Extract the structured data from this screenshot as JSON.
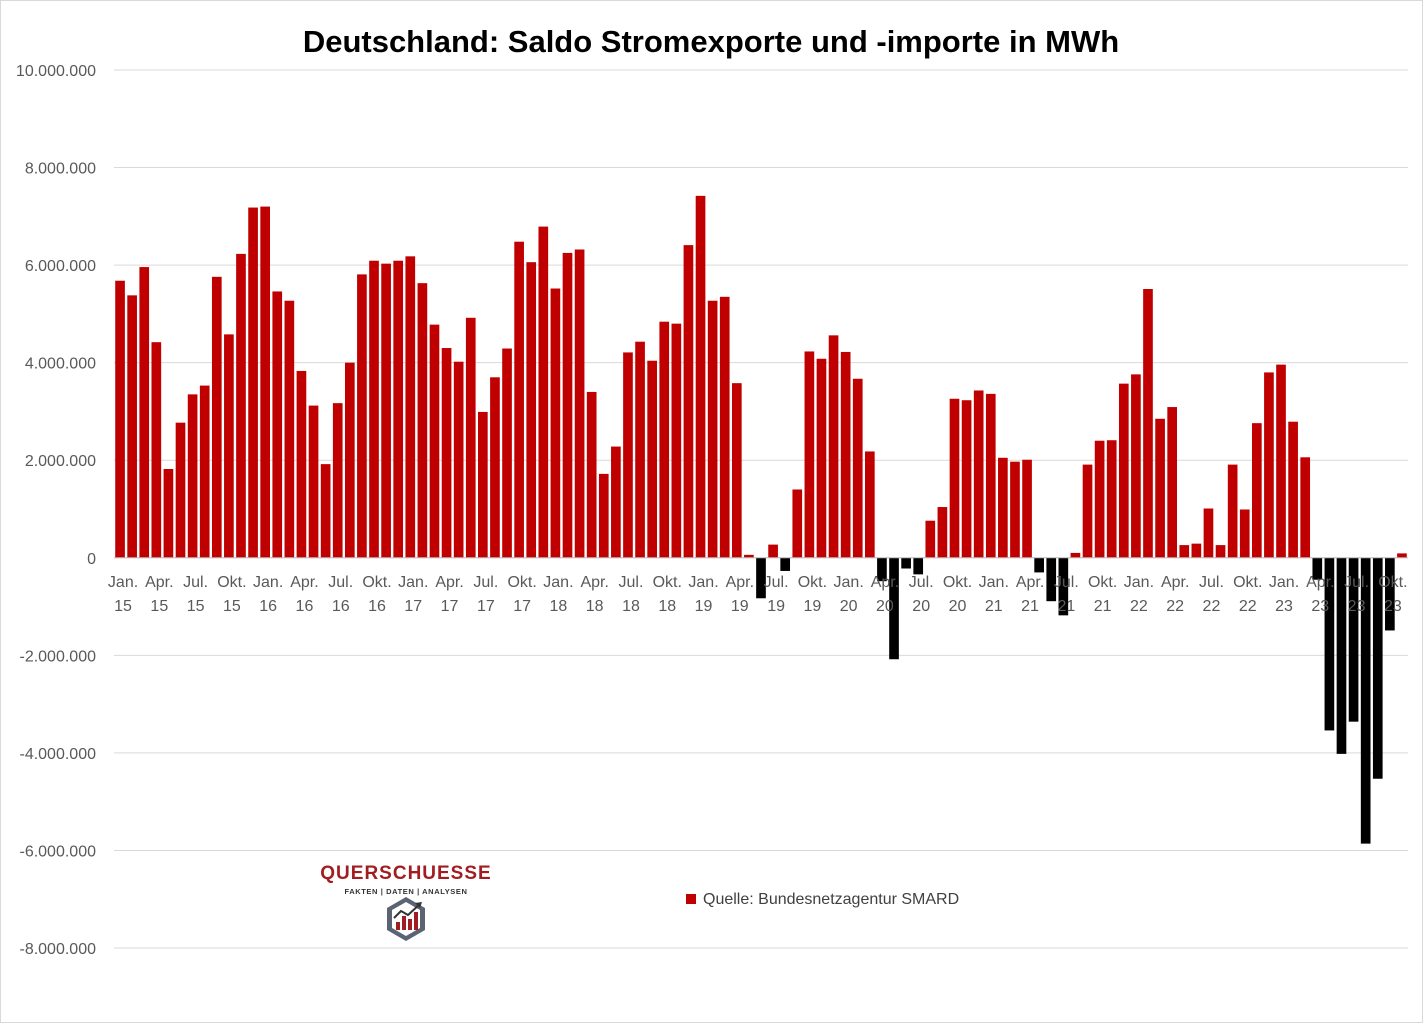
{
  "chart_data": {
    "type": "bar",
    "title": "Deutschland: Saldo Stromexporte  und -importe in MWh",
    "xlabel": "",
    "ylabel": "",
    "ylim": [
      -8000000,
      10000000
    ],
    "yticks": [
      10000000,
      8000000,
      6000000,
      4000000,
      2000000,
      0,
      -2000000,
      -4000000,
      -6000000,
      -8000000
    ],
    "ytick_labels": [
      "10.000.000",
      "8.000.000",
      "6.000.000",
      "4.000.000",
      "2.000.000",
      "0",
      "-2.000.000",
      "-4.000.000",
      "-6.000.000",
      "-8.000.000"
    ],
    "grid": "horizontal",
    "x_tick_labels": [
      [
        "Jan.",
        "15"
      ],
      [
        "Apr.",
        "15"
      ],
      [
        "Jul.",
        "15"
      ],
      [
        "Okt.",
        "15"
      ],
      [
        "Jan.",
        "16"
      ],
      [
        "Apr.",
        "16"
      ],
      [
        "Jul.",
        "16"
      ],
      [
        "Okt.",
        "16"
      ],
      [
        "Jan.",
        "17"
      ],
      [
        "Apr.",
        "17"
      ],
      [
        "Jul.",
        "17"
      ],
      [
        "Okt.",
        "17"
      ],
      [
        "Jan.",
        "18"
      ],
      [
        "Apr.",
        "18"
      ],
      [
        "Jul.",
        "18"
      ],
      [
        "Okt.",
        "18"
      ],
      [
        "Jan.",
        "19"
      ],
      [
        "Apr.",
        "19"
      ],
      [
        "Jul.",
        "19"
      ],
      [
        "Okt.",
        "19"
      ],
      [
        "Jan.",
        "20"
      ],
      [
        "Apr.",
        "20"
      ],
      [
        "Jul.",
        "20"
      ],
      [
        "Okt.",
        "20"
      ],
      [
        "Jan.",
        "21"
      ],
      [
        "Apr.",
        "21"
      ],
      [
        "Jul.",
        "21"
      ],
      [
        "Okt.",
        "21"
      ],
      [
        "Jan.",
        "22"
      ],
      [
        "Apr.",
        "22"
      ],
      [
        "Jul.",
        "22"
      ],
      [
        "Okt.",
        "22"
      ],
      [
        "Jan.",
        "23"
      ],
      [
        "Apr.",
        "23"
      ],
      [
        "Jul.",
        "23"
      ],
      [
        "Okt.",
        "23"
      ]
    ],
    "values": [
      5680000,
      5380000,
      5960000,
      4420000,
      1820000,
      2770000,
      3350000,
      3530000,
      5760000,
      4580000,
      6230000,
      7180000,
      7200000,
      5460000,
      5270000,
      3830000,
      3120000,
      1920000,
      3170000,
      4000000,
      5810000,
      6090000,
      6030000,
      6090000,
      6180000,
      5630000,
      4780000,
      4300000,
      4020000,
      4920000,
      2990000,
      3700000,
      4290000,
      6480000,
      6060000,
      6790000,
      5520000,
      6250000,
      6320000,
      3400000,
      1720000,
      2280000,
      4210000,
      4430000,
      4040000,
      4840000,
      4800000,
      6410000,
      7420000,
      5270000,
      5350000,
      3580000,
      60000,
      -830000,
      270000,
      -270000,
      1400000,
      4230000,
      4080000,
      4560000,
      4220000,
      3670000,
      2180000,
      -480000,
      -2080000,
      -220000,
      -340000,
      760000,
      1040000,
      3260000,
      3230000,
      3430000,
      3360000,
      2050000,
      1970000,
      2010000,
      -300000,
      -890000,
      -1180000,
      100000,
      1910000,
      2400000,
      2410000,
      3570000,
      3760000,
      5510000,
      2850000,
      3090000,
      260000,
      290000,
      1010000,
      260000,
      1910000,
      990000,
      2760000,
      3800000,
      3960000,
      2790000,
      2060000,
      -450000,
      -3540000,
      -4020000,
      -3360000,
      -5860000,
      -4530000,
      -1490000,
      90000
    ],
    "colors": {
      "positive": "#c00000",
      "negative": "#000000",
      "grid": "#d9d9d9",
      "axis": "#bfbfbf"
    },
    "legend": {
      "label": "Quelle: Bundesnetzagentur SMARD",
      "color": "#c00000",
      "placement": "bottom-center"
    }
  },
  "logo": {
    "name": "QUERSCHUESSE",
    "tagline": "FAKTEN | DATEN | ANALYSEN",
    "color": "#a11d22"
  }
}
